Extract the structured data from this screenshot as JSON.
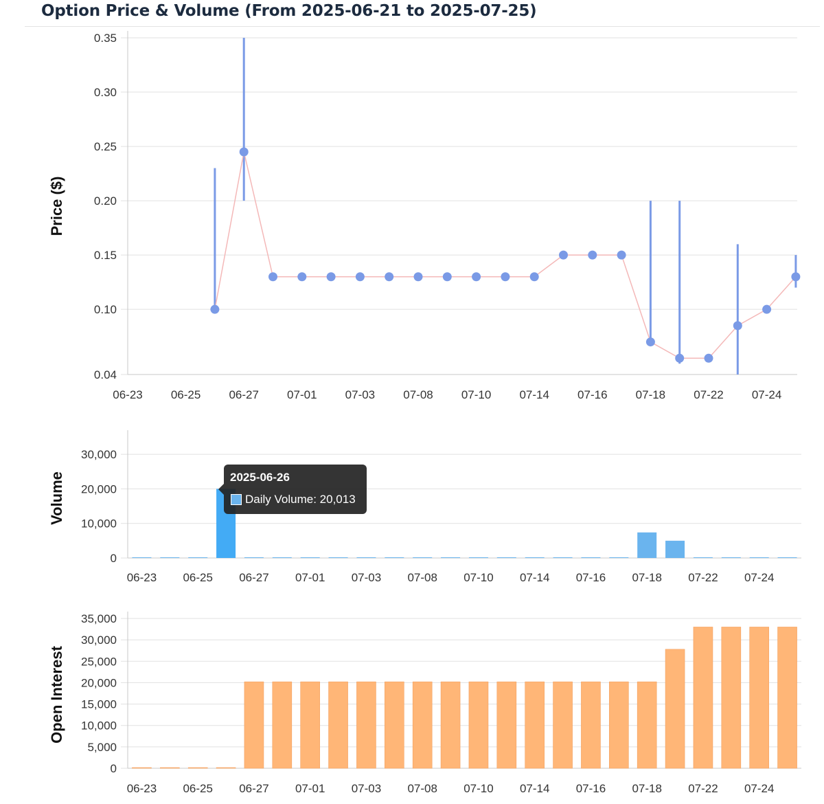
{
  "title": "Option Price & Volume (From 2025-06-21 to 2025-07-25)",
  "colors": {
    "price_marker": "#7a9ae6",
    "price_line": "#f4b8b8",
    "volume_bar": "#6ab4ee",
    "volume_bar_active": "#43abf5",
    "open_interest_bar": "#ffb677"
  },
  "chart_data": [
    {
      "type": "line",
      "ylabel": "Price ($)",
      "ylim": [
        0.04,
        0.35
      ],
      "yticks": [
        "0.35",
        "0.30",
        "0.25",
        "0.20",
        "0.15",
        "0.10",
        "0.04"
      ],
      "xtick_labels": [
        "06-23",
        "06-25",
        "06-27",
        "07-01",
        "07-03",
        "07-08",
        "07-10",
        "07-14",
        "07-16",
        "07-18",
        "07-22",
        "07-24"
      ],
      "categories": [
        "06-23",
        "06-24",
        "06-25",
        "06-26",
        "06-27",
        "06-30",
        "07-01",
        "07-02",
        "07-03",
        "07-07",
        "07-08",
        "07-09",
        "07-10",
        "07-11",
        "07-14",
        "07-15",
        "07-16",
        "07-17",
        "07-18",
        "07-21",
        "07-22",
        "07-23",
        "07-24",
        "07-25"
      ],
      "series": [
        {
          "values": [
            null,
            null,
            null,
            0.1,
            0.245,
            0.13,
            0.13,
            0.13,
            0.13,
            0.13,
            0.13,
            0.13,
            0.13,
            0.13,
            0.13,
            0.15,
            0.15,
            0.15,
            0.07,
            0.055,
            0.055,
            0.085,
            0.1,
            0.13
          ]
        }
      ],
      "ranges": [
        {
          "category": "06-26",
          "low": 0.1,
          "high": 0.23
        },
        {
          "category": "06-27",
          "low": 0.2,
          "high": 0.35
        },
        {
          "category": "07-18",
          "low": 0.07,
          "high": 0.2
        },
        {
          "category": "07-21",
          "low": 0.05,
          "high": 0.2
        },
        {
          "category": "07-23",
          "low": 0.04,
          "high": 0.16
        },
        {
          "category": "07-25",
          "low": 0.12,
          "high": 0.15
        }
      ],
      "grid": true
    },
    {
      "type": "bar",
      "ylabel": "Volume",
      "ylim": [
        0,
        35000
      ],
      "yticks": [
        "30,000",
        "20,000",
        "10,000",
        "0"
      ],
      "xtick_labels": [
        "06-23",
        "06-25",
        "06-27",
        "07-01",
        "07-03",
        "07-08",
        "07-10",
        "07-14",
        "07-16",
        "07-18",
        "07-22",
        "07-24"
      ],
      "categories": [
        "06-23",
        "06-24",
        "06-25",
        "06-26",
        "06-27",
        "06-30",
        "07-01",
        "07-02",
        "07-03",
        "07-07",
        "07-08",
        "07-09",
        "07-10",
        "07-11",
        "07-14",
        "07-15",
        "07-16",
        "07-17",
        "07-18",
        "07-21",
        "07-22",
        "07-23",
        "07-24",
        "07-25"
      ],
      "series": [
        {
          "name": "Daily Volume",
          "values": [
            0,
            0,
            0,
            20013,
            20,
            150,
            150,
            10,
            10,
            10,
            10,
            10,
            10,
            10,
            10,
            100,
            10,
            10,
            7400,
            5000,
            10,
            50,
            150,
            20
          ]
        }
      ],
      "grid": true
    },
    {
      "type": "bar",
      "ylabel": "Open Interest",
      "ylim": [
        0,
        35000
      ],
      "yticks": [
        "35,000",
        "30,000",
        "25,000",
        "20,000",
        "15,000",
        "10,000",
        "5,000",
        "0"
      ],
      "xtick_labels": [
        "06-23",
        "06-25",
        "06-27",
        "07-01",
        "07-03",
        "07-08",
        "07-10",
        "07-14",
        "07-16",
        "07-18",
        "07-22",
        "07-24"
      ],
      "categories": [
        "06-23",
        "06-24",
        "06-25",
        "06-26",
        "06-27",
        "06-30",
        "07-01",
        "07-02",
        "07-03",
        "07-07",
        "07-08",
        "07-09",
        "07-10",
        "07-11",
        "07-14",
        "07-15",
        "07-16",
        "07-17",
        "07-18",
        "07-21",
        "07-22",
        "07-23",
        "07-24",
        "07-25"
      ],
      "series": [
        {
          "values": [
            150,
            150,
            150,
            150,
            20200,
            20200,
            20200,
            20200,
            20200,
            20200,
            20200,
            20200,
            20200,
            20200,
            20200,
            20200,
            20200,
            20200,
            20200,
            27800,
            33000,
            33000,
            33000,
            33000
          ]
        }
      ],
      "grid": true
    }
  ],
  "tooltip": {
    "title": "2025-06-26",
    "label": "Daily Volume: 20,013"
  }
}
